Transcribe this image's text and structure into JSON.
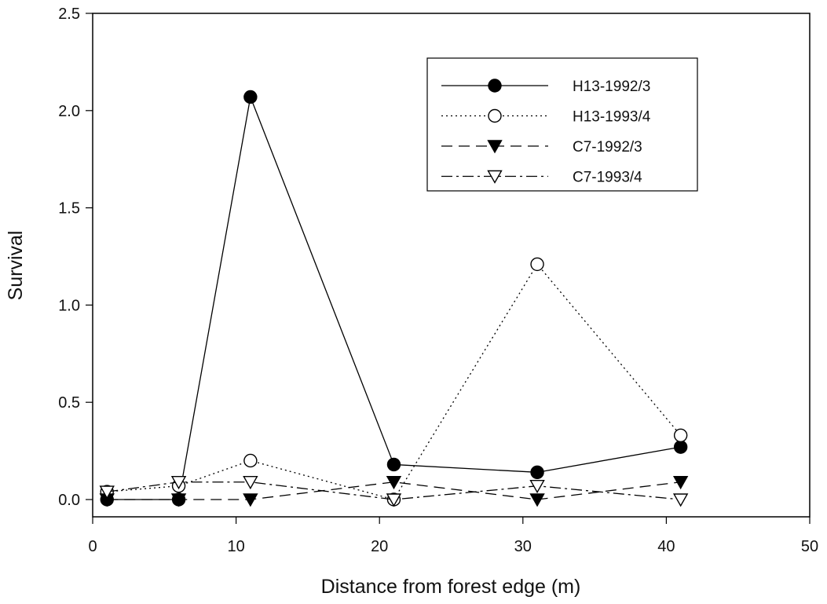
{
  "chart_data": {
    "type": "line",
    "title": "",
    "xlabel": "Distance from forest edge (m)",
    "ylabel": "Survival",
    "xlim": [
      0,
      50
    ],
    "ylim": [
      -0.1,
      2.5
    ],
    "xticks": [
      0,
      10,
      20,
      30,
      40,
      50
    ],
    "xtick_labels": [
      "0",
      "10",
      "20",
      "30",
      "40",
      "50"
    ],
    "yticks": [
      0.0,
      0.5,
      1.0,
      1.5,
      2.0,
      2.5
    ],
    "ytick_labels": [
      "0.0",
      "0.5",
      "1.0",
      "1.5",
      "2.0",
      "2.5"
    ],
    "grid": false,
    "legend_position": "top-right",
    "series": [
      {
        "name": "H13-1992/3",
        "marker": "filled-circle",
        "line": "solid",
        "x": [
          1,
          6,
          11,
          21,
          31,
          41
        ],
        "y": [
          0.0,
          0.0,
          2.07,
          0.18,
          0.14,
          0.27
        ]
      },
      {
        "name": "H13-1993/4",
        "marker": "open-circle",
        "line": "dotted",
        "x": [
          1,
          6,
          11,
          21,
          31,
          41
        ],
        "y": [
          0.04,
          0.07,
          0.2,
          0.0,
          1.21,
          0.33
        ]
      },
      {
        "name": "C7-1992/3",
        "marker": "filled-triangle-down",
        "line": "dashed",
        "x": [
          1,
          6,
          11,
          21,
          31,
          41
        ],
        "y": [
          0.0,
          0.0,
          0.0,
          0.09,
          0.0,
          0.09
        ]
      },
      {
        "name": "C7-1993/4",
        "marker": "open-triangle-down",
        "line": "dash-dot",
        "x": [
          1,
          6,
          11,
          21,
          31,
          41
        ],
        "y": [
          0.04,
          0.09,
          0.09,
          0.0,
          0.07,
          0.0
        ]
      }
    ]
  }
}
